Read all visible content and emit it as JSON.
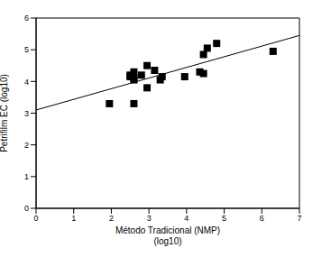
{
  "chart_data": {
    "type": "scatter",
    "x_label": "Método Tradicional (NMP)\n(log10)",
    "y_label": "Petrifilm EC (log10)",
    "xlim": [
      0,
      7
    ],
    "xticks": [
      0,
      1,
      2,
      3,
      4,
      5,
      6,
      7
    ],
    "ylim": [
      0,
      6
    ],
    "yticks": [
      0,
      1,
      2,
      3,
      4,
      5,
      6
    ],
    "grid": false,
    "series": [
      {
        "type": "scatter",
        "marker": "square",
        "color": "#000000",
        "x": [
          1.95,
          2.5,
          2.5,
          2.6,
          2.6,
          2.6,
          2.6,
          2.8,
          2.95,
          2.95,
          3.15,
          3.3,
          3.35,
          3.95,
          4.35,
          4.45,
          4.45,
          4.55,
          4.8,
          6.3
        ],
        "values": [
          3.3,
          4.15,
          4.2,
          4.05,
          4.1,
          4.3,
          3.3,
          4.2,
          4.5,
          3.8,
          4.35,
          4.05,
          4.15,
          4.15,
          4.3,
          4.25,
          4.85,
          5.05,
          5.2,
          4.95
        ]
      },
      {
        "type": "line",
        "line_style": "solid",
        "color": "#000000",
        "x": [
          0,
          7
        ],
        "values": [
          3.1,
          5.45
        ]
      }
    ]
  }
}
